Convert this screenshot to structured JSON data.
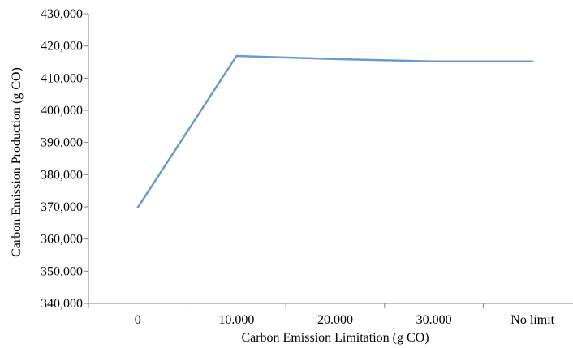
{
  "chart_data": {
    "type": "line",
    "title": "",
    "xlabel": "Carbon Emission Limitation (g CO)",
    "ylabel": "Carbon Emission Production (g CO)",
    "categories": [
      "0",
      "10.000",
      "20.000",
      "30.000",
      "No limit"
    ],
    "series": [
      {
        "values": [
          369800,
          416900,
          415900,
          415200,
          415200
        ],
        "color": "#6a9bc9"
      }
    ],
    "ylim": [
      340000,
      430000
    ],
    "yticks": [
      {
        "value": 340000,
        "label": "340,000"
      },
      {
        "value": 350000,
        "label": "350,000"
      },
      {
        "value": 360000,
        "label": "360,000"
      },
      {
        "value": 370000,
        "label": "370,000"
      },
      {
        "value": 380000,
        "label": "380,000"
      },
      {
        "value": 390000,
        "label": "390,000"
      },
      {
        "value": 400000,
        "label": "400,000"
      },
      {
        "value": 410000,
        "label": "410,000"
      },
      {
        "value": 420000,
        "label": "420,000"
      },
      {
        "value": 430000,
        "label": "430,000"
      }
    ],
    "grid": false,
    "legend": "none"
  }
}
